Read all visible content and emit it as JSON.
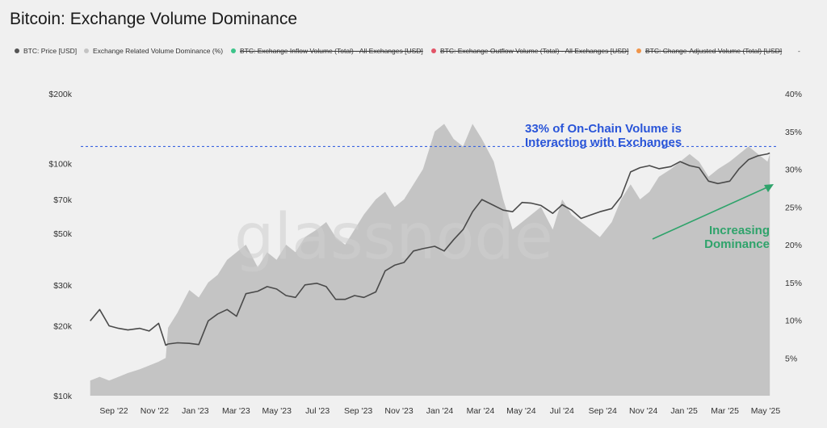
{
  "title": "Bitcoin: Exchange Volume Dominance",
  "watermark": "glassnode",
  "legend": [
    {
      "label": "BTC: Price [USD]",
      "color": "#555555",
      "hidden": false
    },
    {
      "label": "Exchange Related Volume Dominance (%)",
      "color": "#c4c4c4",
      "hidden": false
    },
    {
      "label": "BTC: Exchange Inflow Volume (Total) - All Exchanges [USD]",
      "color": "#3cc48a",
      "hidden": true
    },
    {
      "label": "BTC: Exchange Outflow Volume (Total) - All Exchanges [USD]",
      "color": "#e25467",
      "hidden": true
    },
    {
      "label": "BTC: Change-Adjusted Volume (Total) [USD]",
      "color": "#f0954a",
      "hidden": true
    },
    {
      "label": "-",
      "color": "",
      "hidden": false
    }
  ],
  "annotations": {
    "threshold_line1": "33% of On-Chain Volume is",
    "threshold_line2": "Interacting with Exchanges",
    "trend_line1": "Increasing",
    "trend_line2": "Dominance"
  },
  "colors": {
    "price_line": "#4a4a4a",
    "dominance_area": "#c4c4c4",
    "threshold_line": "#3a64e0",
    "trend_arrow": "#2fa36b"
  },
  "chart_data": {
    "type": "line",
    "x_tick_labels": [
      "Sep '22",
      "Nov '22",
      "Jan '23",
      "Mar '23",
      "May '23",
      "Jul '23",
      "Sep '23",
      "Nov '23",
      "Jan '24",
      "Mar '24",
      "May '24",
      "Jul '24",
      "Sep '24",
      "Nov '24",
      "Jan '25",
      "Mar '25",
      "May '25"
    ],
    "y_left": {
      "label": "",
      "scale": "log",
      "ylim": [
        10000,
        200000
      ],
      "tick_labels": [
        "$200k",
        "$100k",
        "$70k",
        "$50k",
        "$30k",
        "$20k",
        "$10k"
      ],
      "tick_values": [
        200000,
        100000,
        70000,
        50000,
        30000,
        20000,
        10000
      ]
    },
    "y_right": {
      "label": "",
      "scale": "linear",
      "ylim": [
        0,
        40
      ],
      "tick_labels": [
        "40%",
        "35%",
        "30%",
        "25%",
        "20%",
        "15%",
        "10%",
        "5%"
      ],
      "tick_values": [
        40,
        35,
        30,
        25,
        20,
        15,
        10,
        5
      ]
    },
    "threshold_pct": 33,
    "series": [
      {
        "name": "BTC: Price [USD]",
        "axis": "left",
        "x": [
          2022.54,
          2022.58,
          2022.62,
          2022.66,
          2022.7,
          2022.75,
          2022.79,
          2022.83,
          2022.86,
          2022.87,
          2022.91,
          2022.96,
          2023.0,
          2023.04,
          2023.08,
          2023.12,
          2023.16,
          2023.2,
          2023.25,
          2023.29,
          2023.33,
          2023.37,
          2023.41,
          2023.45,
          2023.5,
          2023.54,
          2023.58,
          2023.62,
          2023.66,
          2023.7,
          2023.75,
          2023.79,
          2023.83,
          2023.87,
          2023.91,
          2023.95,
          2024.0,
          2024.04,
          2024.08,
          2024.12,
          2024.16,
          2024.2,
          2024.25,
          2024.29,
          2024.33,
          2024.37,
          2024.41,
          2024.45,
          2024.5,
          2024.54,
          2024.58,
          2024.62,
          2024.66,
          2024.7,
          2024.75,
          2024.79,
          2024.83,
          2024.87,
          2024.91,
          2024.95,
          2025.0,
          2025.04,
          2025.08,
          2025.12,
          2025.16,
          2025.2,
          2025.25,
          2025.29,
          2025.33,
          2025.37,
          2025.41,
          2025.42
        ],
        "y": [
          21000,
          23500,
          20000,
          19500,
          19200,
          19500,
          19000,
          20500,
          16500,
          16700,
          16900,
          16800,
          16600,
          21000,
          22500,
          23500,
          22000,
          27500,
          28200,
          29500,
          28800,
          27000,
          26500,
          30000,
          30500,
          29500,
          26000,
          26000,
          27000,
          26500,
          28000,
          34500,
          36500,
          37500,
          42000,
          43000,
          44000,
          42000,
          47000,
          52000,
          62000,
          70000,
          66000,
          63000,
          62000,
          68000,
          67500,
          66000,
          61000,
          66500,
          63000,
          58000,
          60000,
          62000,
          64000,
          72000,
          92000,
          96000,
          98000,
          95000,
          97000,
          102000,
          98000,
          96000,
          84000,
          82000,
          84000,
          95000,
          104000,
          108000,
          110000,
          111000
        ]
      },
      {
        "name": "Exchange Related Volume Dominance (%)",
        "axis": "right",
        "x": [
          2022.54,
          2022.58,
          2022.62,
          2022.66,
          2022.7,
          2022.75,
          2022.79,
          2022.83,
          2022.86,
          2022.87,
          2022.91,
          2022.96,
          2023.0,
          2023.04,
          2023.08,
          2023.12,
          2023.16,
          2023.2,
          2023.25,
          2023.29,
          2023.33,
          2023.37,
          2023.41,
          2023.45,
          2023.5,
          2023.54,
          2023.58,
          2023.62,
          2023.66,
          2023.7,
          2023.75,
          2023.79,
          2023.83,
          2023.87,
          2023.91,
          2023.95,
          2024.0,
          2024.04,
          2024.08,
          2024.12,
          2024.16,
          2024.2,
          2024.25,
          2024.29,
          2024.33,
          2024.37,
          2024.41,
          2024.45,
          2024.5,
          2024.54,
          2024.58,
          2024.62,
          2024.66,
          2024.7,
          2024.75,
          2024.79,
          2024.83,
          2024.87,
          2024.91,
          2024.95,
          2025.0,
          2025.04,
          2025.08,
          2025.12,
          2025.16,
          2025.2,
          2025.25,
          2025.29,
          2025.33,
          2025.37,
          2025.41,
          2025.42
        ],
        "y": [
          2,
          2.5,
          2,
          2.5,
          3,
          3.5,
          4,
          4.5,
          5,
          9,
          11,
          14,
          13,
          15,
          16,
          18,
          19,
          20,
          17,
          19,
          18,
          20,
          19,
          21,
          22,
          23,
          21,
          20,
          22,
          24,
          26,
          27,
          25,
          26,
          28,
          30,
          35,
          36,
          34,
          33,
          36,
          34,
          31,
          26,
          22,
          23,
          24,
          25,
          22,
          26,
          24,
          23,
          22,
          21,
          23,
          26,
          28,
          26,
          27,
          29,
          30,
          31,
          32,
          31,
          29,
          30,
          31,
          32,
          33,
          32,
          31,
          32
        ]
      }
    ],
    "legend_position": "top"
  }
}
